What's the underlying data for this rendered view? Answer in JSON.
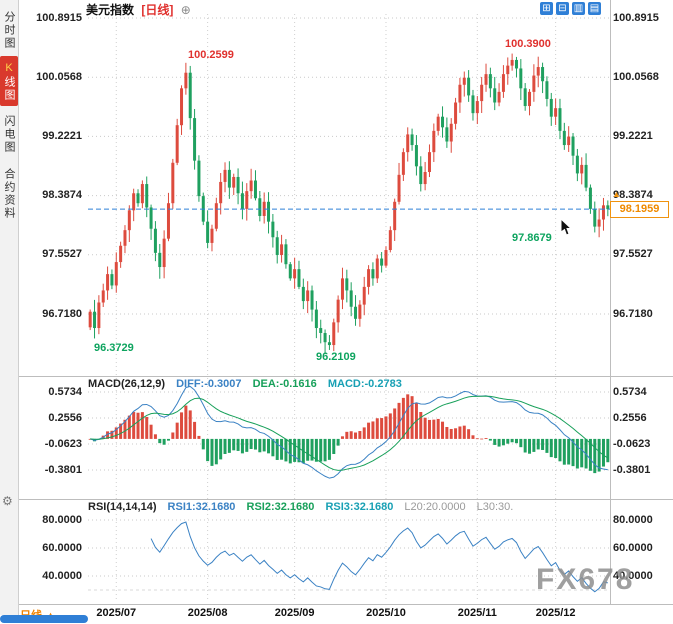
{
  "header": {
    "symbol": "美元指数",
    "period": "[日线]",
    "expand_icon": "⊕"
  },
  "toolbar": {
    "icons": [
      {
        "name": "grid-layout",
        "glyph": "⊞"
      },
      {
        "name": "multi-panel",
        "glyph": "⊟"
      },
      {
        "name": "bar-chart-view",
        "glyph": "▥"
      },
      {
        "name": "candlestick-view",
        "glyph": "▤"
      }
    ]
  },
  "sidebar": {
    "tabs": [
      {
        "label": "分时图"
      },
      {
        "label": "K线图"
      },
      {
        "label": "闪电图"
      },
      {
        "label": "合约资料"
      }
    ],
    "gear": "⚙"
  },
  "bottom": {
    "period_selector": "日线",
    "arrow": "▲"
  },
  "price_marker": {
    "value": "98.1959",
    "arrow": "▲"
  },
  "watermark": "FX678",
  "colors": {
    "up": "#dd4b3e",
    "down": "#1fa05f",
    "current_line": "#2f80d6",
    "annotation_red": "#e0312e",
    "annotation_green": "#0ea45f"
  },
  "chart_data": [
    {
      "type": "candlestick",
      "title": "美元指数 [日线]",
      "y_axis_labels": [
        "100.8915",
        "100.0568",
        "99.2221",
        "98.3874",
        "97.5527",
        "96.7180"
      ],
      "x_axis_labels": [
        "2025/07",
        "2025/08",
        "2025/09",
        "2025/10",
        "2025/11",
        "2025/12"
      ],
      "month_start_indices": [
        6,
        27,
        47,
        68,
        89,
        107
      ],
      "ylim": [
        96.2109,
        100.8915
      ],
      "current_price_value": 98.1959,
      "closes": [
        96.75,
        96.52,
        96.88,
        97.05,
        97.28,
        97.12,
        97.45,
        97.68,
        97.9,
        98.18,
        98.42,
        98.28,
        98.55,
        98.22,
        97.92,
        97.58,
        97.38,
        97.78,
        98.28,
        98.85,
        99.38,
        99.9,
        100.12,
        99.48,
        98.88,
        98.38,
        98.02,
        97.72,
        97.92,
        98.28,
        98.58,
        98.75,
        98.5,
        98.65,
        98.42,
        98.2,
        98.45,
        98.6,
        98.35,
        98.1,
        98.3,
        98.02,
        97.8,
        97.55,
        97.7,
        97.42,
        97.22,
        97.35,
        97.1,
        96.9,
        97.05,
        96.78,
        96.52,
        96.45,
        96.32,
        96.28,
        96.6,
        96.92,
        97.22,
        97.05,
        96.82,
        96.65,
        96.85,
        97.1,
        97.35,
        97.22,
        97.5,
        97.4,
        97.62,
        97.9,
        98.3,
        98.68,
        99.0,
        99.25,
        99.1,
        98.8,
        98.55,
        98.72,
        99.0,
        99.3,
        99.5,
        99.35,
        99.15,
        99.4,
        99.7,
        99.95,
        100.05,
        99.8,
        99.55,
        99.72,
        99.95,
        100.1,
        99.9,
        99.7,
        99.85,
        100.1,
        100.22,
        100.3,
        100.18,
        99.9,
        99.65,
        99.85,
        100.08,
        100.2,
        100.0,
        99.75,
        99.5,
        99.62,
        99.3,
        99.1,
        99.22,
        98.95,
        98.7,
        98.82,
        98.5,
        98.2,
        97.95,
        98.05,
        98.25,
        98.1959
      ],
      "key_points": {
        "1": {
          "low": 96.3729
        },
        "22": {
          "high": 100.2599
        },
        "55": {
          "low": 96.2109
        },
        "97": {
          "high": 100.39
        },
        "116": {
          "low": 97.8679
        }
      },
      "annotations": [
        {
          "label": "100.2599",
          "color": "#e0312e"
        },
        {
          "label": "100.3900",
          "color": "#e0312e"
        },
        {
          "label": "96.3729",
          "color": "#0ea45f"
        },
        {
          "label": "96.2109",
          "color": "#0ea45f"
        },
        {
          "label": "97.8679",
          "color": "#0ea45f"
        }
      ]
    },
    {
      "type": "bar",
      "name": "MACD",
      "params": "MACD(26,12,9)",
      "labels": {
        "diff": "DIFF:-0.3007",
        "dea": "DEA:-0.1616",
        "macd": "MACD:-0.2783"
      },
      "values": {
        "diff": -0.3007,
        "dea": -0.1616,
        "macd": -0.2783
      },
      "y_axis_labels": [
        "0.5734",
        "0.2556",
        "-0.0623",
        "-0.3801"
      ]
    },
    {
      "type": "line",
      "name": "RSI",
      "params": "RSI(14,14,14)",
      "labels": {
        "rsi1": "RSI1:32.1680",
        "rsi2": "RSI2:32.1680",
        "rsi3": "RSI3:32.1680",
        "l20": "L20:20.0000",
        "l30": "L30:30."
      },
      "values": {
        "rsi1": 32.168,
        "rsi2": 32.168,
        "rsi3": 32.168,
        "l20": 20.0,
        "l30": 30.0
      },
      "y_axis_labels": [
        "80.0000",
        "60.0000",
        "40.0000"
      ]
    }
  ]
}
